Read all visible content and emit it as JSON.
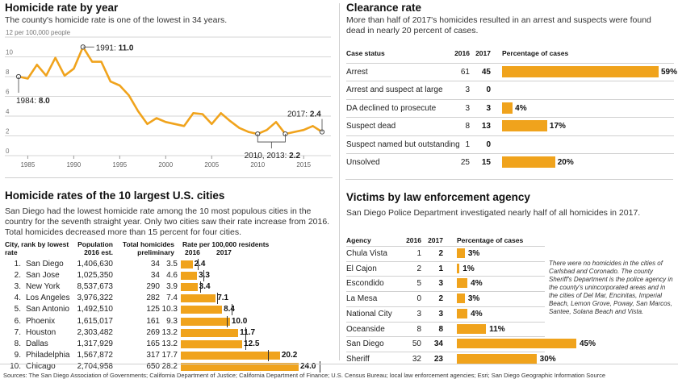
{
  "sources": "Sources: The San Diego Association of Governments; California Department of Justice; California Department of Finance; U.S. Census Bureau; local law enforcement agencies; Esri; San Diego Geographic Information Source",
  "colors": {
    "bar": "#f0a31c",
    "line": "#f0a31c",
    "grid": "#d6d6d6"
  },
  "chart_data": [
    {
      "type": "line",
      "title": "Homicide rate by year",
      "subtitle": "The county's homicide rate is one of the lowest in 34 years.",
      "ylabel": "12 per 100,000 people",
      "ylim": [
        0,
        12
      ],
      "yticks": [
        "10",
        "8",
        "6",
        "4",
        "2",
        "0"
      ],
      "xticks": [
        "1985",
        "1990",
        "1995",
        "2000",
        "2005",
        "2010",
        "2015"
      ],
      "x": [
        1984,
        1985,
        1986,
        1987,
        1988,
        1989,
        1990,
        1991,
        1992,
        1993,
        1994,
        1995,
        1996,
        1997,
        1998,
        1999,
        2000,
        2001,
        2002,
        2003,
        2004,
        2005,
        2006,
        2007,
        2008,
        2009,
        2010,
        2011,
        2012,
        2013,
        2014,
        2015,
        2016,
        2017
      ],
      "values": [
        8.0,
        7.8,
        9.2,
        8.1,
        9.9,
        8.1,
        8.8,
        11.0,
        9.5,
        9.5,
        7.5,
        7.1,
        6.1,
        4.5,
        3.2,
        3.8,
        3.4,
        3.2,
        3.0,
        4.3,
        4.2,
        3.2,
        4.3,
        3.5,
        2.8,
        2.4,
        2.2,
        2.6,
        3.4,
        2.2,
        2.4,
        2.6,
        3.0,
        2.4
      ],
      "annotations": [
        {
          "label": "1984:",
          "value": "8.0"
        },
        {
          "label": "1991:",
          "value": "11.0"
        },
        {
          "label": "2010, 2013:",
          "value": "2.2"
        },
        {
          "label": "2017:",
          "value": "2.4"
        }
      ]
    },
    {
      "type": "bar",
      "title": "Clearance rate",
      "subtitle": "More than half of 2017's homicides resulted in an arrest and suspects were found dead in nearly 20 percent of cases.",
      "headers": [
        "Case status",
        "2016",
        "2017",
        "Percentage of cases"
      ],
      "rows": [
        {
          "label": "Arrest",
          "y2016": "61",
          "y2017": "45",
          "pct": 59,
          "pct_label": "59%"
        },
        {
          "label": "Arrest and suspect at large",
          "y2016": "3",
          "y2017": "0",
          "pct": 0,
          "pct_label": ""
        },
        {
          "label": "DA declined to prosecute",
          "y2016": "3",
          "y2017": "3",
          "pct": 4,
          "pct_label": "4%"
        },
        {
          "label": "Suspect dead",
          "y2016": "8",
          "y2017": "13",
          "pct": 17,
          "pct_label": "17%"
        },
        {
          "label": "Suspect named but outstanding",
          "y2016": "1",
          "y2017": "0",
          "pct": 0,
          "pct_label": ""
        },
        {
          "label": "Unsolved",
          "y2016": "25",
          "y2017": "15",
          "pct": 20,
          "pct_label": "20%"
        }
      ]
    },
    {
      "type": "bar",
      "title": "Homicide rates of the 10 largest U.S. cities",
      "subtitle": "San Diego had the lowest homicide rate among the 10 most populous cities in the country for the seventh straight year. Only two cities saw their rate increase from 2016. Total homicides decreased more than 15 percent for four cities.",
      "headers": {
        "city": "City, rank by lowest rate",
        "pop": "Population 2016 est.",
        "total": "Total homicides preliminary",
        "rate": "Rate per 100,000 residents",
        "y2016": "2016",
        "y2017": "2017"
      },
      "rows": [
        {
          "rank": "1.",
          "city": "San Diego",
          "pop": "1,406,630",
          "total": "34",
          "rate2016": 3.5,
          "rate2016_label": "3.5",
          "rate2017": 2.4,
          "rate2017_label": "2.4"
        },
        {
          "rank": "2.",
          "city": "San Jose",
          "pop": "1,025,350",
          "total": "34",
          "rate2016": 4.6,
          "rate2016_label": "4.6",
          "rate2017": 3.3,
          "rate2017_label": "3.3"
        },
        {
          "rank": "3.",
          "city": "New York",
          "pop": "8,537,673",
          "total": "290",
          "rate2016": 3.9,
          "rate2016_label": "3.9",
          "rate2017": 3.4,
          "rate2017_label": "3.4"
        },
        {
          "rank": "4.",
          "city": "Los Angeles",
          "pop": "3,976,322",
          "total": "282",
          "rate2016": 7.4,
          "rate2016_label": "7.4",
          "rate2017": 7.1,
          "rate2017_label": "7.1"
        },
        {
          "rank": "5.",
          "city": "San Antonio",
          "pop": "1,492,510",
          "total": "125",
          "rate2016": 10.3,
          "rate2016_label": "10.3",
          "rate2017": 8.4,
          "rate2017_label": "8.4"
        },
        {
          "rank": "6.",
          "city": "Phoenix",
          "pop": "1,615,017",
          "total": "161",
          "rate2016": 9.3,
          "rate2016_label": "9.3",
          "rate2017": 10.0,
          "rate2017_label": "10.0"
        },
        {
          "rank": "7.",
          "city": "Houston",
          "pop": "2,303,482",
          "total": "269",
          "rate2016": 13.2,
          "rate2016_label": "13.2",
          "rate2017": 11.7,
          "rate2017_label": "11.7"
        },
        {
          "rank": "8.",
          "city": "Dallas",
          "pop": "1,317,929",
          "total": "165",
          "rate2016": 13.2,
          "rate2016_label": "13.2",
          "rate2017": 12.5,
          "rate2017_label": "12.5"
        },
        {
          "rank": "9.",
          "city": "Philadelphia",
          "pop": "1,567,872",
          "total": "317",
          "rate2016": 17.7,
          "rate2016_label": "17.7",
          "rate2017": 20.2,
          "rate2017_label": "20.2"
        },
        {
          "rank": "10.",
          "city": "Chicago",
          "pop": "2,704,958",
          "total": "650",
          "rate2016": 28.2,
          "rate2016_label": "28.2",
          "rate2017": 24.0,
          "rate2017_label": "24.0"
        }
      ]
    },
    {
      "type": "bar",
      "title": "Victims by law enforcement agency",
      "subtitle": "San Diego Police Department investigated nearly half of all homicides in 2017.",
      "headers": [
        "Agency",
        "2016",
        "2017",
        "Percentage of cases"
      ],
      "note": "There were no homicides in the cities of Carlsbad and Coronado. The county Sheriff's Department is the police agency in the county's unincorporated areas and in the cities of Del Mar, Encinitas, Imperial Beach, Lemon Grove, Poway, San Marcos, Santee, Solana Beach and Vista.",
      "rows": [
        {
          "label": "Chula Vista",
          "y2016": "1",
          "y2017": "2",
          "pct": 3,
          "pct_label": "3%"
        },
        {
          "label": "El Cajon",
          "y2016": "2",
          "y2017": "1",
          "pct": 1,
          "pct_label": "1%"
        },
        {
          "label": "Escondido",
          "y2016": "5",
          "y2017": "3",
          "pct": 4,
          "pct_label": "4%"
        },
        {
          "label": "La Mesa",
          "y2016": "0",
          "y2017": "2",
          "pct": 3,
          "pct_label": "3%"
        },
        {
          "label": "National City",
          "y2016": "3",
          "y2017": "3",
          "pct": 4,
          "pct_label": "4%"
        },
        {
          "label": "Oceanside",
          "y2016": "8",
          "y2017": "8",
          "pct": 11,
          "pct_label": "11%"
        },
        {
          "label": "San Diego",
          "y2016": "50",
          "y2017": "34",
          "pct": 45,
          "pct_label": "45%"
        },
        {
          "label": "Sheriff",
          "y2016": "32",
          "y2017": "23",
          "pct": 30,
          "pct_label": "30%"
        }
      ]
    }
  ]
}
